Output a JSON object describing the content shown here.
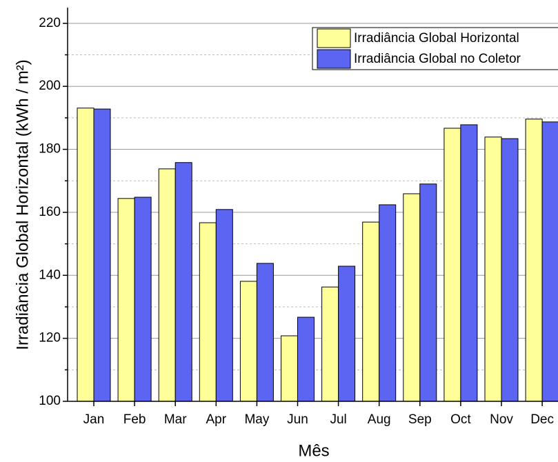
{
  "chart_data": {
    "type": "bar",
    "x_label": "Mês",
    "y_label": "Irradiância Global Horizontal (kWh / m²)",
    "categories": [
      "Jan",
      "Feb",
      "Mar",
      "Apr",
      "May",
      "Jun",
      "Jul",
      "Aug",
      "Sep",
      "Oct",
      "Nov",
      "Dec"
    ],
    "series": [
      {
        "name": "Irradiância Global Horizontal",
        "color": "#ffff99",
        "values": [
          193.1,
          164.4,
          173.8,
          156.7,
          138.1,
          120.8,
          136.3,
          156.9,
          165.9,
          186.7,
          183.9,
          189.6
        ]
      },
      {
        "name": "Irradiância Global no Coletor",
        "color": "#5c64f2",
        "values": [
          192.8,
          164.8,
          175.8,
          160.9,
          143.8,
          126.7,
          142.9,
          162.4,
          169.0,
          187.8,
          183.4,
          188.7
        ]
      }
    ],
    "ylim": [
      100,
      225
    ],
    "yticks": [
      100,
      120,
      140,
      160,
      180,
      200,
      220
    ],
    "yminorticks": [
      110,
      130,
      150,
      170,
      190,
      210
    ],
    "grid": true,
    "legend": "upper right"
  }
}
